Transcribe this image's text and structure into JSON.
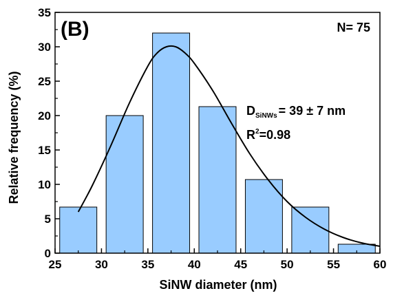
{
  "chart_data": {
    "type": "bar",
    "panel_label": "(B)",
    "xlabel": "SiNW diameter (nm)",
    "ylabel": "Relative frequency (%)",
    "xlim": [
      25,
      60
    ],
    "ylim": [
      0,
      35
    ],
    "xticks": [
      25,
      30,
      35,
      40,
      45,
      50,
      55,
      60
    ],
    "yticks": [
      0,
      5,
      10,
      15,
      20,
      25,
      30,
      35
    ],
    "bin_width": 5,
    "bin_centers": [
      27.5,
      32.5,
      37.5,
      42.5,
      47.5,
      52.5,
      57.5
    ],
    "values": [
      6.7,
      20.0,
      32.0,
      21.3,
      10.7,
      6.7,
      1.3
    ],
    "bar_color": "#99CCFF",
    "fit_curve": {
      "type": "lognormal",
      "x": [
        27.5,
        29,
        31,
        33,
        35,
        36,
        37,
        38,
        39,
        40,
        42,
        44,
        46,
        48,
        50,
        52,
        54,
        56,
        58,
        60
      ],
      "y": [
        6.0,
        9.8,
        15.6,
        21.8,
        27.2,
        29.1,
        30.0,
        30.0,
        29.1,
        27.6,
        23.6,
        18.9,
        14.4,
        10.6,
        7.5,
        5.2,
        3.5,
        2.3,
        1.5,
        1.0
      ]
    },
    "annotations": {
      "n": "N= 75",
      "d_main": "D",
      "d_sub": "SiNWs",
      "d_value": "= 39 ± 7 nm",
      "r_main": "R",
      "r_sup": "2",
      "r_value": "=0.98"
    }
  }
}
